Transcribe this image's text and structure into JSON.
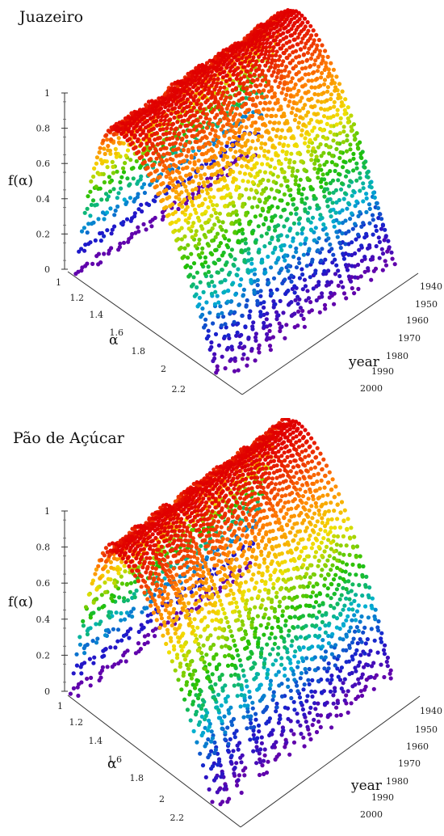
{
  "chart_data": [
    {
      "type": "scatter",
      "subtype": "3d-surface-points",
      "title": "Juazeiro",
      "zlabel": "f(α)",
      "xlabel": "α",
      "ylabel": "year",
      "zlim": [
        0,
        1
      ],
      "z_ticks": [
        "0",
        "0.2",
        "0.4",
        "0.6",
        "0.8",
        "1"
      ],
      "x_ticks": [
        "1",
        "1.2",
        "1.4",
        "1.6",
        "1.8",
        "2",
        "2.2"
      ],
      "y_ticks": [
        "1940",
        "1950",
        "1960",
        "1970",
        "1980",
        "1990",
        "2000"
      ],
      "alpha_range": [
        1.0,
        2.3
      ],
      "year_range": [
        1936,
        2004
      ],
      "curve_profile": {
        "alpha_peak": 1.38,
        "alpha_min": 1.05,
        "alpha_max": 2.12
      },
      "colormap": [
        "#6a00a8",
        "#1a1acc",
        "#00b0d0",
        "#22c000",
        "#f0e000",
        "#ff8000",
        "#e00000"
      ]
    },
    {
      "type": "scatter",
      "subtype": "3d-surface-points",
      "title": "Pão de Açúcar",
      "zlabel": "f(α)",
      "xlabel": "α",
      "ylabel": "year",
      "zlim": [
        0,
        1
      ],
      "z_ticks": [
        "0",
        "0.2",
        "0.4",
        "0.6",
        "0.8",
        "1"
      ],
      "x_ticks": [
        "1",
        "1.2",
        "1.4",
        "1.6",
        "1.8",
        "2",
        "2.2"
      ],
      "y_ticks": [
        "1940",
        "1950",
        "1960",
        "1970",
        "1980",
        "1990",
        "2000"
      ],
      "alpha_range": [
        1.0,
        2.3
      ],
      "year_range": [
        1936,
        2004
      ],
      "curve_profile": {
        "alpha_peak": 1.36,
        "alpha_min": 1.02,
        "alpha_max": 2.08
      },
      "colormap": [
        "#6a00a8",
        "#1a1acc",
        "#00b0d0",
        "#22c000",
        "#f0e000",
        "#ff8000",
        "#e00000"
      ]
    }
  ]
}
